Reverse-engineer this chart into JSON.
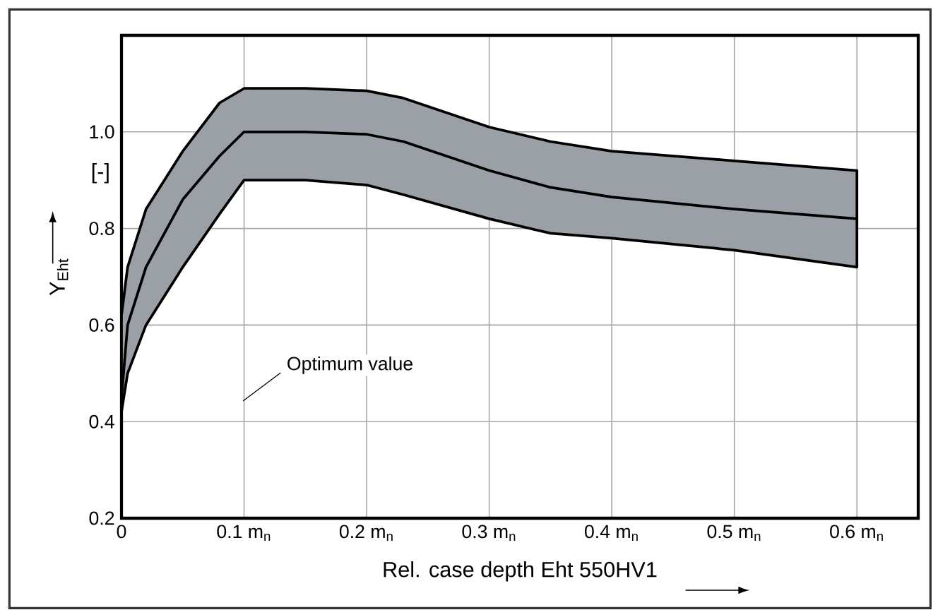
{
  "chart_data": {
    "type": "line",
    "xlabel": "Rel. case depth Eht 550HV1",
    "ylabel": "Y$_{Eht}$",
    "annotations": [
      "[-]",
      "Optimum value"
    ],
    "x": [
      0,
      0.005,
      0.02,
      0.05,
      0.08,
      0.1,
      0.15,
      0.2,
      0.23,
      0.3,
      0.35,
      0.4,
      0.5,
      0.6
    ],
    "series": [
      {
        "color": "#000000",
        "values": [
          0.45,
          0.6,
          0.72,
          0.86,
          0.95,
          1.0,
          1.0,
          0.995,
          0.98,
          0.92,
          0.885,
          0.865,
          0.84,
          0.82
        ],
        "lower": [
          0.42,
          0.5,
          0.6,
          0.72,
          0.83,
          0.9,
          0.9,
          0.89,
          0.87,
          0.82,
          0.79,
          0.78,
          0.755,
          0.72
        ],
        "upper": [
          0.62,
          0.72,
          0.84,
          0.96,
          1.06,
          1.09,
          1.09,
          1.085,
          1.07,
          1.01,
          0.98,
          0.96,
          0.94,
          0.92
        ]
      }
    ],
    "xlim": [
      0,
      0.65
    ],
    "ylim": [
      0.2,
      1.2
    ],
    "xticks": [
      0,
      {
        "value": 0.1,
        "label": "0.1 m$_{n}$"
      },
      {
        "value": 0.2,
        "label": "0.2 m$_{n}$"
      },
      {
        "value": 0.3,
        "label": "0.3 m$_{n}$"
      },
      {
        "value": 0.4,
        "label": "0.4 m$_{n}$"
      },
      {
        "value": 0.5,
        "label": "0.5 m$_{n}$"
      },
      {
        "value": 0.6,
        "label": "0.6 m$_{n}$"
      }
    ],
    "yticks": [
      0.2,
      0.4,
      0.6,
      0.8,
      {
        "value": 1,
        "label": "1.0"
      }
    ],
    "grid": true,
    "marker": "none",
    "line_style": "solid"
  }
}
